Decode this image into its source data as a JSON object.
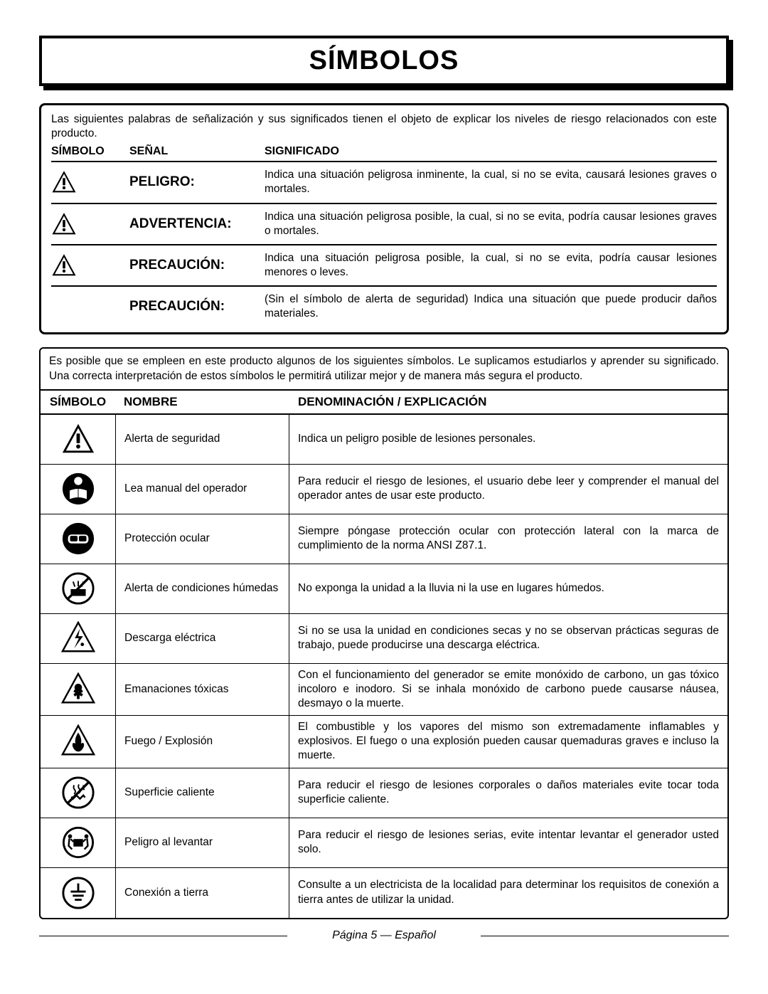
{
  "title": "SÍMBOLOS",
  "signal_box": {
    "intro": "Las siguientes palabras de señalización y sus significados tienen el objeto de explicar los niveles de riesgo relacionados con este producto.",
    "headers": {
      "c1": "SÍMBOLO",
      "c2": "SEÑAL",
      "c3": "SIGNIFICADO"
    },
    "rows": [
      {
        "has_icon": true,
        "signal": "PELIGRO:",
        "meaning": "Indica una situación peligrosa inminente, la cual, si no se evita, causará lesiones graves o mortales."
      },
      {
        "has_icon": true,
        "signal": "ADVERTENCIA:",
        "meaning": "Indica una situación peligrosa posible, la cual, si no se evita, podría causar lesiones graves o mortales."
      },
      {
        "has_icon": true,
        "signal": "PRECAUCIÓN:",
        "meaning": "Indica una situación peligrosa posible, la cual, si no se evita, podría causar lesiones menores o leves."
      },
      {
        "has_icon": false,
        "signal": "PRECAUCIÓN:",
        "meaning": "(Sin el símbolo de alerta de seguridad) Indica una situación que puede producir daños materiales."
      }
    ]
  },
  "symbol_box": {
    "intro": "Es posible que se empleen en este producto algunos de los siguientes símbolos. Le suplicamos estudiarlos y aprender su significado. Una correcta interpretación de estos símbolos le permitirá utilizar mejor y de manera más segura el producto.",
    "headers": {
      "s1": "SÍMBOLO",
      "s2": "NOMBRE",
      "s3": "DENOMINACIÓN / EXPLICACIÓN"
    },
    "rows": [
      {
        "icon": "alert",
        "name": "Alerta de seguridad",
        "desc": "Indica un peligro posible de lesiones personales."
      },
      {
        "icon": "manual",
        "name": "Lea manual del operador",
        "desc": "Para reducir el riesgo de lesiones, el usuario debe leer y comprender el manual del operador antes de usar este producto."
      },
      {
        "icon": "eye",
        "name": "Protección ocular",
        "desc": "Siempre póngase protección ocular con protección lateral con la marca de cumplimiento de la norma ANSI Z87.1."
      },
      {
        "icon": "wet",
        "name": "Alerta de condiciones húmedas",
        "desc": "No exponga la unidad a la lluvia ni la use en lugares húmedos."
      },
      {
        "icon": "shock",
        "name": "Descarga eléctrica",
        "desc": "Si no se usa la unidad en condiciones secas y no se observan prácticas seguras de trabajo, puede producirse una descarga eléctrica."
      },
      {
        "icon": "fumes",
        "name": "Emanaciones tóxicas",
        "desc": "Con el funcionamiento del generador se emite monóxido de carbono, un gas tóxico incoloro e inodoro. Si se inhala monóxido de carbono puede causarse náusea, desmayo o la muerte."
      },
      {
        "icon": "fire",
        "name": "Fuego / Explosión",
        "desc": "El combustible y los vapores del mismo son extremadamente inflamables y explosivos. El fuego o una explosión pueden causar quemaduras graves e incluso la muerte."
      },
      {
        "icon": "hot",
        "name": "Superficie caliente",
        "desc": "Para reducir el riesgo de lesiones corporales o daños materiales evite tocar toda superficie caliente."
      },
      {
        "icon": "lift",
        "name": "Peligro al levantar",
        "desc": "Para reducir el riesgo de lesiones serias, evite intentar levantar el generador usted solo."
      },
      {
        "icon": "ground",
        "name": "Conexión a tierra",
        "desc": "Consulte a un electricista de la localidad para determinar los requisitos de conexión a tierra antes de utilizar la unidad."
      }
    ]
  },
  "footer": "Página 5 — Español",
  "colors": {
    "fg": "#000000",
    "bg": "#ffffff"
  }
}
